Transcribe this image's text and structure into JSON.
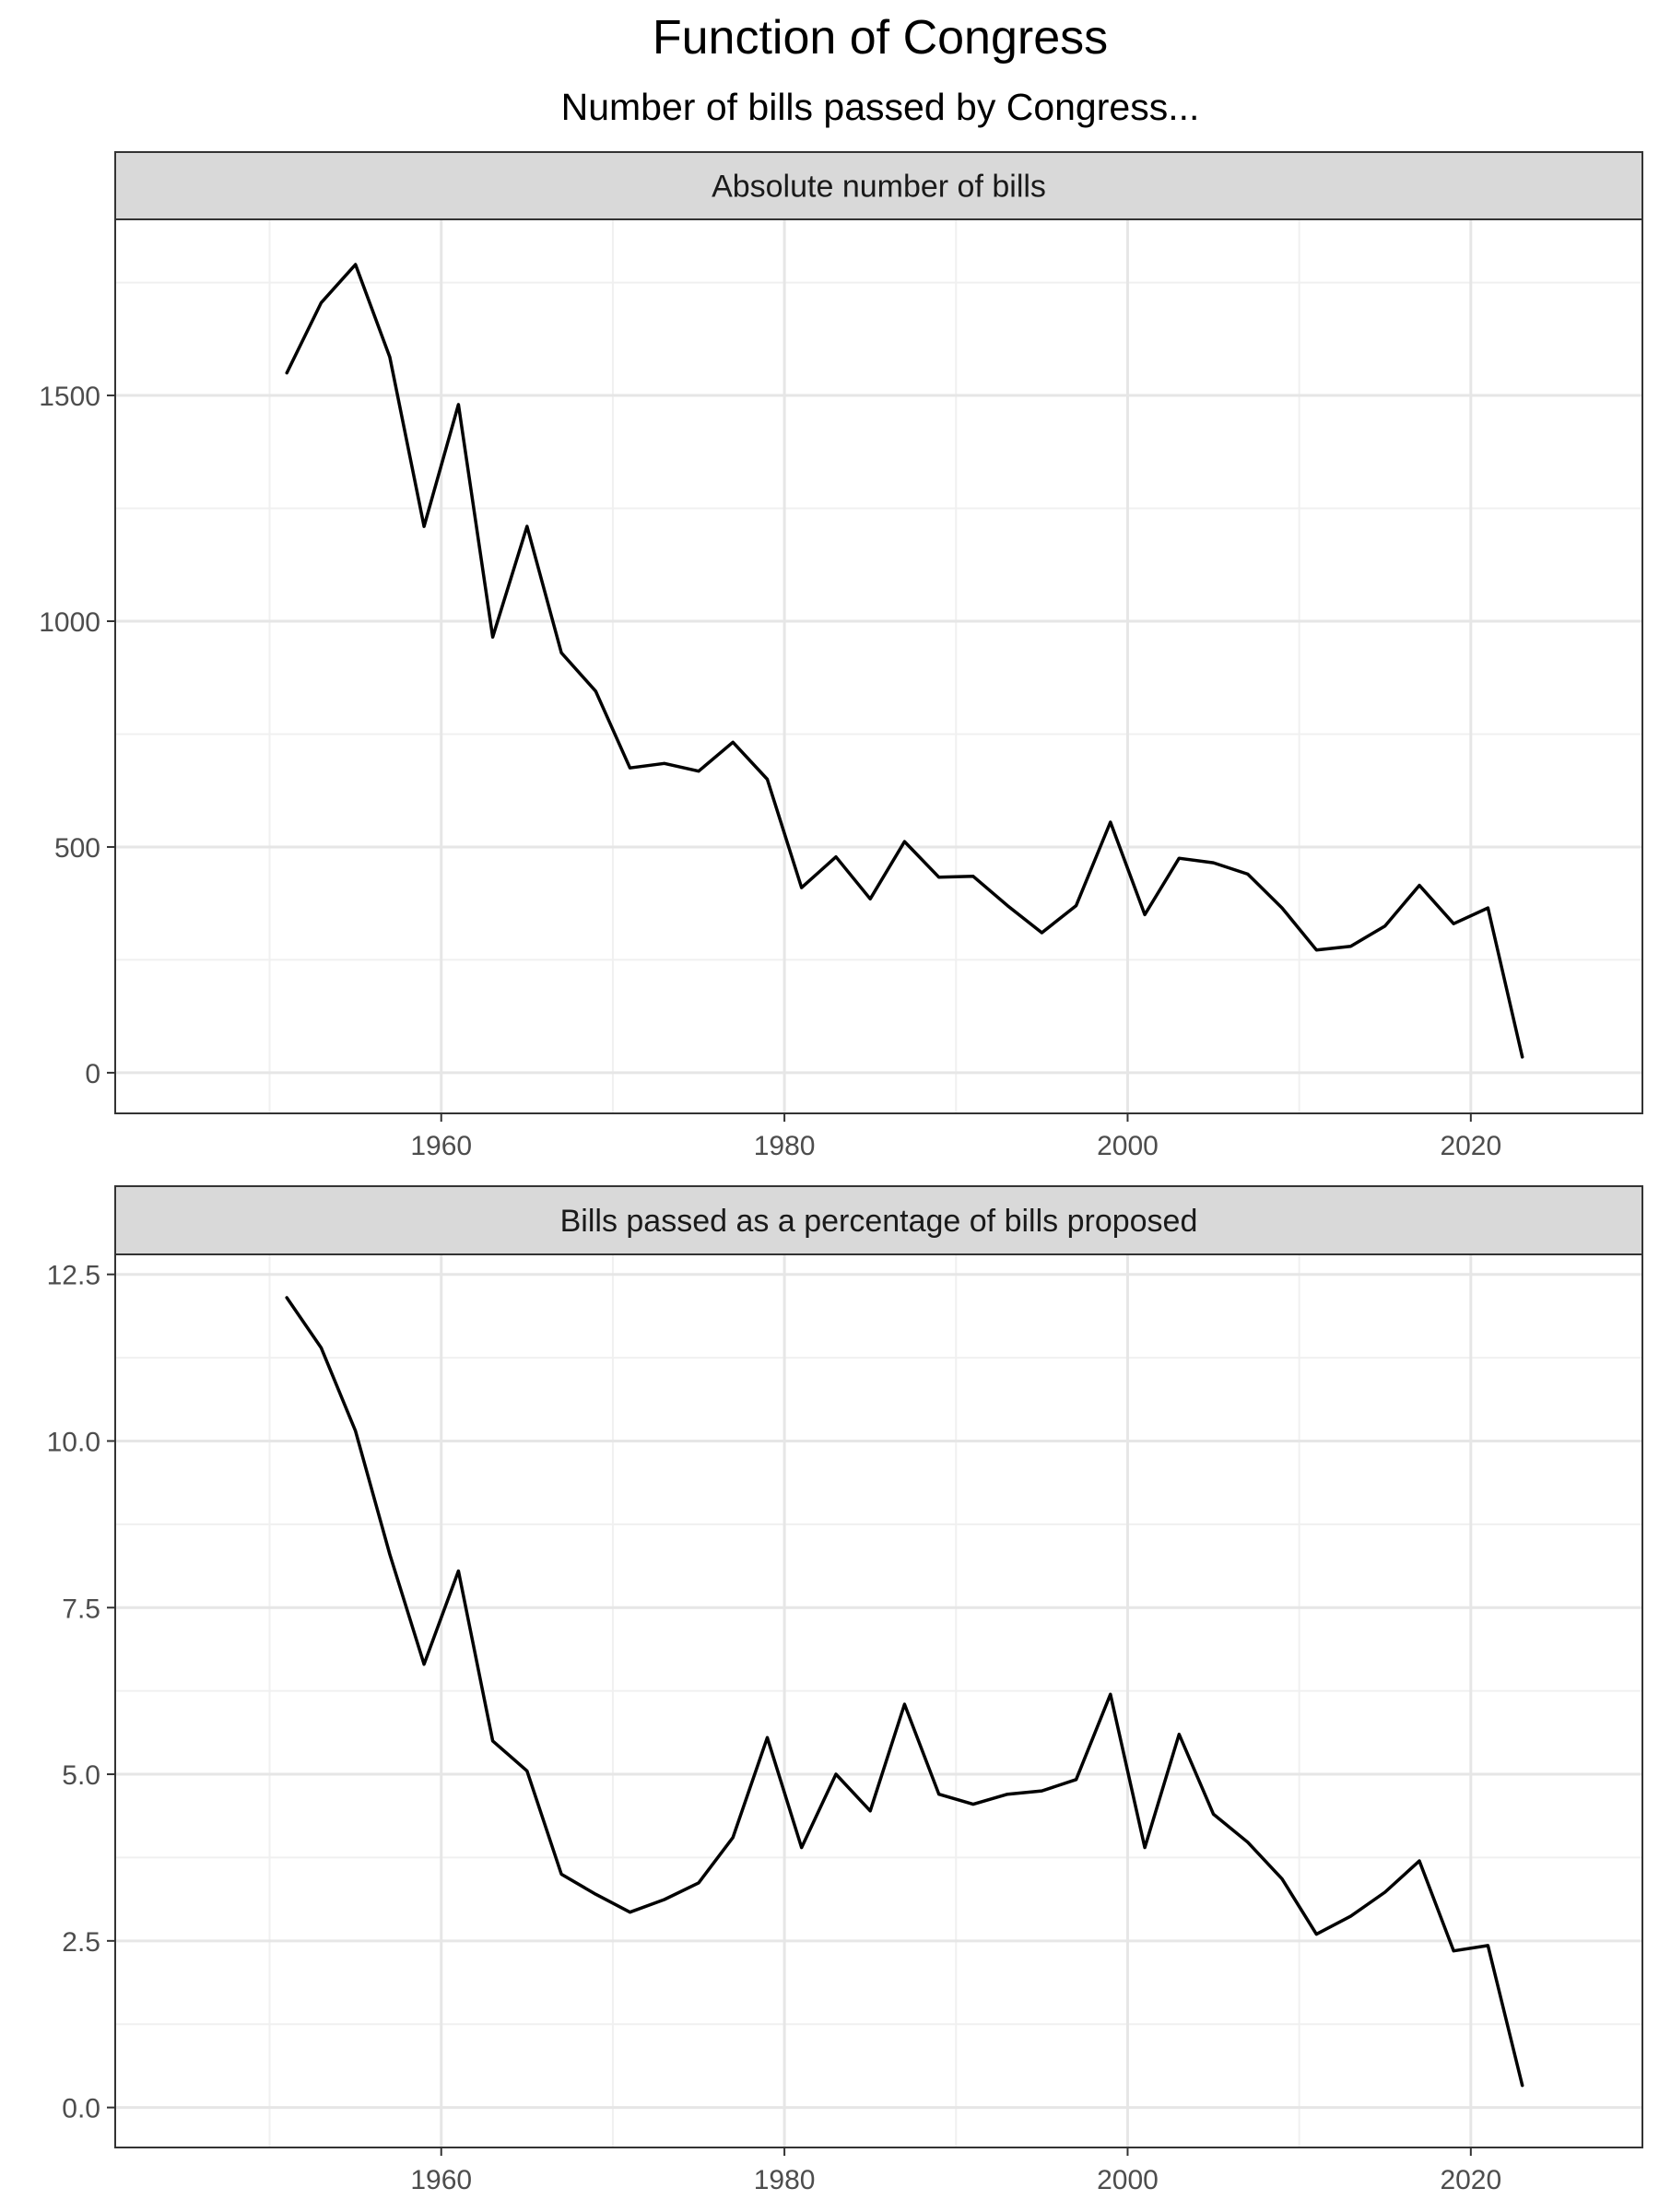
{
  "chart_data": {
    "type": "line",
    "title": "Function of Congress",
    "subtitle": "Number of bills passed by Congress...",
    "x_ticks": [
      1960,
      1980,
      2000,
      2020
    ],
    "xlim": [
      1941,
      2030
    ],
    "grid": true,
    "panels": [
      {
        "strip_label": "Absolute number of bills",
        "ylim": [
          -90,
          1890
        ],
        "y_ticks": [
          0,
          500,
          1000,
          1500
        ],
        "y_tick_labels": [
          "0",
          "500",
          "1000",
          "1500"
        ],
        "y_minor": [
          250,
          750,
          1250,
          1750
        ],
        "series": [
          {
            "x": [
              1951,
              1953,
              1955,
              1957,
              1959,
              1961,
              1963,
              1965,
              1967,
              1969,
              1971,
              1973,
              1975,
              1977,
              1979,
              1981,
              1983,
              1985,
              1987,
              1989,
              1991,
              1993,
              1995,
              1997,
              1999,
              2001,
              2003,
              2005,
              2007,
              2009,
              2011,
              2013,
              2015,
              2017,
              2019,
              2021,
              2023
            ],
            "values": [
              1550,
              1705,
              1790,
              1585,
              1210,
              1480,
              965,
              1210,
              930,
              845,
              675,
              685,
              668,
              732,
              650,
              410,
              478,
              385,
              512,
              433,
              435,
              370,
              310,
              370,
              555,
              350,
              475,
              465,
              440,
              365,
              272,
              280,
              325,
              415,
              330,
              365,
              35
            ]
          }
        ]
      },
      {
        "strip_label": "Bills passed as a percentage of bills proposed",
        "ylim": [
          -0.6,
          12.8
        ],
        "y_ticks": [
          0,
          2.5,
          5,
          7.5,
          10,
          12.5
        ],
        "y_tick_labels": [
          "0.0",
          "2.5",
          "5.0",
          "7.5",
          "10.0",
          "12.5"
        ],
        "y_minor": [
          1.25,
          3.75,
          6.25,
          8.75,
          11.25
        ],
        "series": [
          {
            "x": [
              1951,
              1953,
              1955,
              1957,
              1959,
              1961,
              1963,
              1965,
              1967,
              1969,
              1971,
              1973,
              1975,
              1977,
              1979,
              1981,
              1983,
              1985,
              1987,
              1989,
              1991,
              1993,
              1995,
              1997,
              1999,
              2001,
              2003,
              2005,
              2007,
              2009,
              2011,
              2013,
              2015,
              2017,
              2019,
              2021,
              2023
            ],
            "values": [
              12.15,
              11.4,
              10.15,
              8.3,
              6.65,
              8.05,
              5.5,
              5.05,
              3.5,
              3.2,
              2.93,
              3.12,
              3.37,
              4.05,
              5.55,
              3.9,
              5.0,
              4.45,
              6.05,
              4.7,
              4.55,
              4.7,
              4.75,
              4.92,
              6.2,
              3.9,
              5.6,
              4.4,
              3.98,
              3.43,
              2.6,
              2.87,
              3.23,
              3.7,
              2.35,
              2.43,
              0.33
            ]
          }
        ]
      }
    ]
  }
}
